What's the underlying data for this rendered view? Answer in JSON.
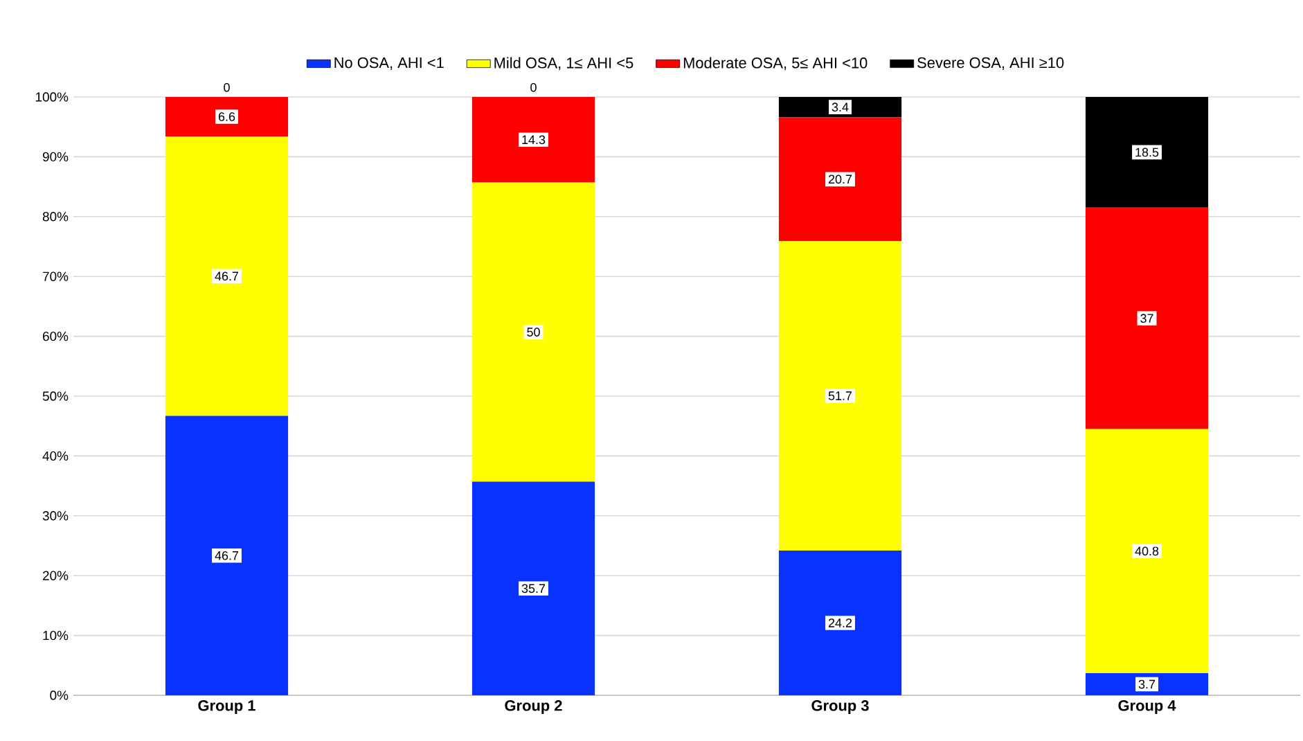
{
  "chart_data": {
    "type": "bar",
    "stacked": true,
    "categories": [
      "Group 1",
      "Group 2",
      "Group 3",
      "Group 4"
    ],
    "series": [
      {
        "name": "No OSA, AHI <1",
        "color": "#0a32ff",
        "values": [
          46.7,
          35.7,
          24.2,
          3.7
        ]
      },
      {
        "name": "Mild OSA, 1≤ AHI <5",
        "color": "#ffff00",
        "values": [
          46.7,
          50,
          51.7,
          40.8
        ]
      },
      {
        "name": "Moderate OSA, 5≤ AHI <10",
        "color": "#ff0000",
        "values": [
          6.6,
          14.3,
          20.7,
          37
        ]
      },
      {
        "name": "Severe OSA, AHI ≥10",
        "color": "#000000",
        "values": [
          0,
          0,
          3.4,
          18.5
        ]
      }
    ],
    "ylim": [
      0,
      100
    ],
    "yticks": [
      {
        "value": 0,
        "label": "0%"
      },
      {
        "value": 10,
        "label": "10%"
      },
      {
        "value": 20,
        "label": "20%"
      },
      {
        "value": 30,
        "label": "30%"
      },
      {
        "value": 40,
        "label": "40%"
      },
      {
        "value": 50,
        "label": "50%"
      },
      {
        "value": 60,
        "label": "60%"
      },
      {
        "value": 70,
        "label": "70%"
      },
      {
        "value": 80,
        "label": "80%"
      },
      {
        "value": 90,
        "label": "90%"
      },
      {
        "value": 100,
        "label": "100%"
      }
    ],
    "grid": "y",
    "legend": "top",
    "data_labels": true
  }
}
